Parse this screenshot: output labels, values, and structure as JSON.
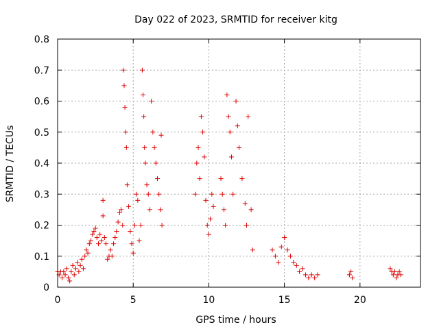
{
  "chart_data": {
    "type": "scatter",
    "title": "Day 022 of 2023, SRMTID for receiver kitg",
    "xlabel": "GPS time / hours",
    "ylabel": "SRMTID / TECUs",
    "xlim": [
      0,
      24
    ],
    "ylim": [
      0,
      0.8
    ],
    "xticks": [
      0,
      5,
      10,
      15,
      20
    ],
    "yticks": [
      0,
      0.1,
      0.2,
      0.3,
      0.4,
      0.5,
      0.6,
      0.7,
      0.8
    ],
    "xtick_labels": [
      "0",
      "5",
      "10",
      "15",
      "20"
    ],
    "ytick_labels": [
      "0",
      "0.1",
      "0.2",
      "0.3",
      "0.4",
      "0.5",
      "0.6",
      "0.7",
      "0.8"
    ],
    "grid": true,
    "marker": "+",
    "color": "#dd0000",
    "series": [
      {
        "name": "SRMTID",
        "points": [
          [
            0.0,
            0.05
          ],
          [
            0.1,
            0.04
          ],
          [
            0.2,
            0.05
          ],
          [
            0.3,
            0.03
          ],
          [
            0.4,
            0.05
          ],
          [
            0.5,
            0.04
          ],
          [
            0.6,
            0.06
          ],
          [
            0.7,
            0.03
          ],
          [
            0.8,
            0.02
          ],
          [
            0.9,
            0.05
          ],
          [
            1.0,
            0.07
          ],
          [
            1.1,
            0.04
          ],
          [
            1.2,
            0.06
          ],
          [
            1.3,
            0.08
          ],
          [
            1.4,
            0.05
          ],
          [
            1.5,
            0.07
          ],
          [
            1.6,
            0.09
          ],
          [
            1.7,
            0.06
          ],
          [
            1.8,
            0.1
          ],
          [
            1.9,
            0.12
          ],
          [
            2.0,
            0.11
          ],
          [
            2.1,
            0.14
          ],
          [
            2.2,
            0.15
          ],
          [
            2.3,
            0.17
          ],
          [
            2.4,
            0.18
          ],
          [
            2.5,
            0.19
          ],
          [
            2.6,
            0.16
          ],
          [
            2.7,
            0.14
          ],
          [
            2.8,
            0.17
          ],
          [
            2.9,
            0.15
          ],
          [
            3.0,
            0.28
          ],
          [
            3.0,
            0.23
          ],
          [
            3.1,
            0.16
          ],
          [
            3.2,
            0.14
          ],
          [
            3.3,
            0.09
          ],
          [
            3.4,
            0.1
          ],
          [
            3.5,
            0.12
          ],
          [
            3.6,
            0.1
          ],
          [
            3.7,
            0.14
          ],
          [
            3.8,
            0.16
          ],
          [
            3.9,
            0.18
          ],
          [
            4.0,
            0.21
          ],
          [
            4.1,
            0.24
          ],
          [
            4.2,
            0.25
          ],
          [
            4.3,
            0.2
          ],
          [
            4.35,
            0.7
          ],
          [
            4.4,
            0.65
          ],
          [
            4.45,
            0.58
          ],
          [
            4.5,
            0.5
          ],
          [
            4.55,
            0.45
          ],
          [
            4.6,
            0.33
          ],
          [
            4.7,
            0.26
          ],
          [
            4.8,
            0.18
          ],
          [
            4.9,
            0.14
          ],
          [
            5.0,
            0.11
          ],
          [
            5.1,
            0.2
          ],
          [
            5.2,
            0.3
          ],
          [
            5.3,
            0.28
          ],
          [
            5.4,
            0.15
          ],
          [
            5.5,
            0.2
          ],
          [
            5.6,
            0.7
          ],
          [
            5.65,
            0.62
          ],
          [
            5.7,
            0.55
          ],
          [
            5.75,
            0.45
          ],
          [
            5.8,
            0.4
          ],
          [
            5.9,
            0.33
          ],
          [
            6.0,
            0.3
          ],
          [
            6.1,
            0.25
          ],
          [
            6.2,
            0.6
          ],
          [
            6.3,
            0.5
          ],
          [
            6.4,
            0.45
          ],
          [
            6.5,
            0.4
          ],
          [
            6.6,
            0.35
          ],
          [
            6.7,
            0.3
          ],
          [
            6.8,
            0.25
          ],
          [
            6.85,
            0.49
          ],
          [
            6.9,
            0.2
          ],
          [
            9.1,
            0.3
          ],
          [
            9.2,
            0.4
          ],
          [
            9.3,
            0.45
          ],
          [
            9.4,
            0.35
          ],
          [
            9.5,
            0.55
          ],
          [
            9.6,
            0.5
          ],
          [
            9.7,
            0.42
          ],
          [
            9.8,
            0.28
          ],
          [
            9.9,
            0.2
          ],
          [
            10.0,
            0.17
          ],
          [
            10.1,
            0.22
          ],
          [
            10.2,
            0.3
          ],
          [
            10.3,
            0.26
          ],
          [
            10.8,
            0.35
          ],
          [
            10.9,
            0.3
          ],
          [
            11.0,
            0.25
          ],
          [
            11.1,
            0.2
          ],
          [
            11.2,
            0.62
          ],
          [
            11.3,
            0.55
          ],
          [
            11.4,
            0.5
          ],
          [
            11.5,
            0.42
          ],
          [
            11.6,
            0.3
          ],
          [
            11.8,
            0.6
          ],
          [
            11.9,
            0.52
          ],
          [
            12.0,
            0.45
          ],
          [
            12.2,
            0.35
          ],
          [
            12.4,
            0.27
          ],
          [
            12.5,
            0.2
          ],
          [
            12.6,
            0.55
          ],
          [
            12.8,
            0.25
          ],
          [
            12.9,
            0.12
          ],
          [
            14.2,
            0.12
          ],
          [
            14.4,
            0.1
          ],
          [
            14.6,
            0.08
          ],
          [
            14.8,
            0.13
          ],
          [
            15.0,
            0.16
          ],
          [
            15.2,
            0.12
          ],
          [
            15.4,
            0.1
          ],
          [
            15.6,
            0.08
          ],
          [
            15.8,
            0.07
          ],
          [
            16.0,
            0.05
          ],
          [
            16.2,
            0.06
          ],
          [
            16.4,
            0.04
          ],
          [
            16.6,
            0.03
          ],
          [
            16.8,
            0.04
          ],
          [
            17.0,
            0.03
          ],
          [
            17.2,
            0.04
          ],
          [
            19.3,
            0.04
          ],
          [
            19.4,
            0.05
          ],
          [
            19.5,
            0.03
          ],
          [
            22.0,
            0.06
          ],
          [
            22.1,
            0.05
          ],
          [
            22.2,
            0.04
          ],
          [
            22.3,
            0.05
          ],
          [
            22.4,
            0.03
          ],
          [
            22.5,
            0.04
          ],
          [
            22.6,
            0.05
          ],
          [
            22.7,
            0.04
          ]
        ]
      }
    ]
  }
}
